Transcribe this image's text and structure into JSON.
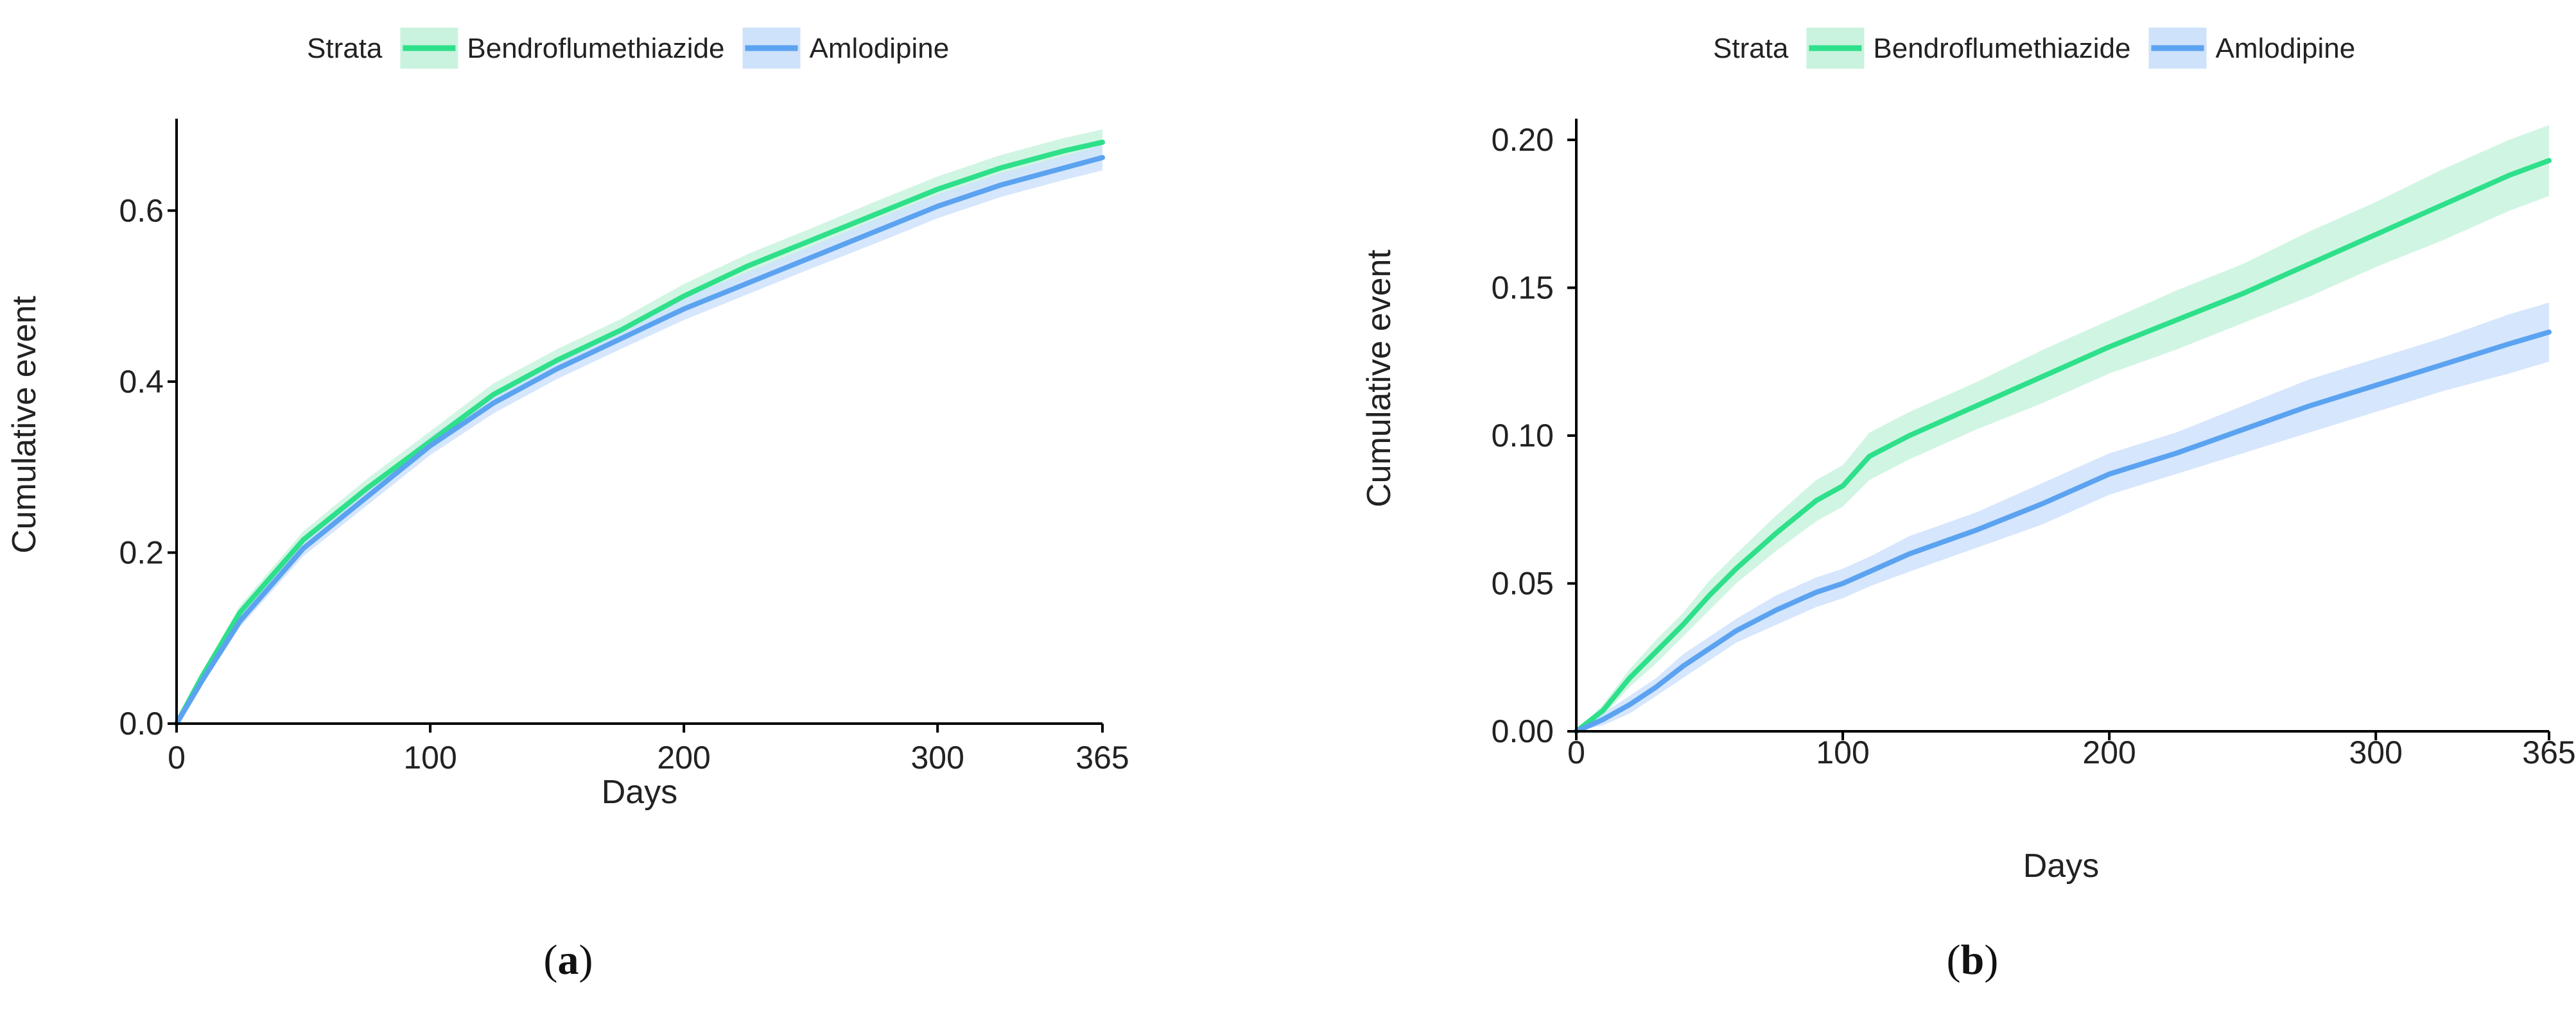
{
  "chart_data": [
    {
      "type": "line",
      "panel_label": "a",
      "title": "",
      "xlabel": "Days",
      "ylabel": "Cumulative event",
      "xlim": [
        0,
        365
      ],
      "ylim": [
        0,
        0.7
      ],
      "xticks": [
        "0",
        "100",
        "200",
        "300",
        "365"
      ],
      "xtick_values": [
        0,
        100,
        200,
        300,
        365
      ],
      "yticks": [
        "0.0",
        "0.2",
        "0.4",
        "0.6"
      ],
      "ytick_values": [
        0,
        0.2,
        0.4,
        0.6
      ],
      "grid": false,
      "legend": {
        "title": "Strata",
        "position": "top",
        "entries": [
          "Bendroflumethiazide",
          "Amlodipine"
        ]
      },
      "series": [
        {
          "name": "Bendroflumethiazide",
          "color": "#2EE08A",
          "band_color": "#C9F3DE",
          "x": [
            0,
            10,
            25,
            50,
            75,
            100,
            125,
            150,
            175,
            200,
            225,
            250,
            275,
            300,
            325,
            350,
            365
          ],
          "values": [
            0,
            0.055,
            0.13,
            0.215,
            0.275,
            0.33,
            0.385,
            0.425,
            0.46,
            0.5,
            0.535,
            0.565,
            0.595,
            0.625,
            0.65,
            0.67,
            0.68
          ],
          "ci_lower": [
            0,
            0.05,
            0.122,
            0.205,
            0.264,
            0.318,
            0.372,
            0.412,
            0.447,
            0.486,
            0.521,
            0.551,
            0.58,
            0.61,
            0.635,
            0.655,
            0.665
          ],
          "ci_upper": [
            0,
            0.06,
            0.138,
            0.225,
            0.286,
            0.342,
            0.398,
            0.438,
            0.473,
            0.514,
            0.549,
            0.579,
            0.61,
            0.64,
            0.665,
            0.685,
            0.695
          ]
        },
        {
          "name": "Amlodipine",
          "color": "#5BA3F0",
          "band_color": "#CFE2FB",
          "x": [
            0,
            10,
            25,
            50,
            75,
            100,
            125,
            150,
            175,
            200,
            225,
            250,
            275,
            300,
            325,
            350,
            365
          ],
          "values": [
            0,
            0.05,
            0.12,
            0.205,
            0.265,
            0.325,
            0.375,
            0.415,
            0.45,
            0.485,
            0.515,
            0.545,
            0.575,
            0.605,
            0.63,
            0.65,
            0.662
          ],
          "ci_lower": [
            0,
            0.045,
            0.113,
            0.196,
            0.255,
            0.314,
            0.363,
            0.403,
            0.438,
            0.472,
            0.502,
            0.532,
            0.561,
            0.591,
            0.616,
            0.636,
            0.647
          ],
          "ci_upper": [
            0,
            0.055,
            0.127,
            0.214,
            0.275,
            0.336,
            0.387,
            0.427,
            0.462,
            0.498,
            0.528,
            0.558,
            0.589,
            0.619,
            0.644,
            0.664,
            0.677
          ]
        }
      ]
    },
    {
      "type": "line",
      "panel_label": "b",
      "title": "",
      "xlabel": "Days",
      "ylabel": "Cumulative event",
      "xlim": [
        0,
        365
      ],
      "ylim": [
        0,
        0.205
      ],
      "xticks": [
        "0",
        "100",
        "200",
        "300",
        "365"
      ],
      "xtick_values": [
        0,
        100,
        200,
        300,
        365
      ],
      "yticks": [
        "0.00",
        "0.05",
        "0.10",
        "0.15",
        "0.20"
      ],
      "ytick_values": [
        0,
        0.05,
        0.1,
        0.15,
        0.2
      ],
      "grid": false,
      "legend": {
        "title": "Strata",
        "position": "top",
        "entries": [
          "Bendroflumethiazide",
          "Amlodipine"
        ]
      },
      "series": [
        {
          "name": "Bendroflumethiazide",
          "color": "#2EE08A",
          "band_color": "#C9F3DE",
          "x": [
            0,
            10,
            20,
            30,
            40,
            50,
            60,
            75,
            90,
            100,
            110,
            125,
            150,
            175,
            200,
            225,
            250,
            275,
            300,
            325,
            350,
            365
          ],
          "values": [
            0,
            0.007,
            0.018,
            0.027,
            0.036,
            0.046,
            0.055,
            0.067,
            0.078,
            0.083,
            0.093,
            0.1,
            0.11,
            0.12,
            0.13,
            0.139,
            0.148,
            0.158,
            0.168,
            0.178,
            0.188,
            0.193
          ],
          "ci_lower": [
            0,
            0.005,
            0.015,
            0.023,
            0.032,
            0.041,
            0.05,
            0.061,
            0.071,
            0.076,
            0.085,
            0.092,
            0.102,
            0.111,
            0.121,
            0.129,
            0.138,
            0.147,
            0.157,
            0.166,
            0.176,
            0.181
          ],
          "ci_upper": [
            0,
            0.009,
            0.021,
            0.031,
            0.04,
            0.051,
            0.06,
            0.073,
            0.085,
            0.09,
            0.101,
            0.108,
            0.118,
            0.129,
            0.139,
            0.149,
            0.158,
            0.169,
            0.179,
            0.19,
            0.2,
            0.205
          ]
        },
        {
          "name": "Amlodipine",
          "color": "#5BA3F0",
          "band_color": "#CFE2FB",
          "x": [
            0,
            10,
            20,
            30,
            40,
            50,
            60,
            75,
            90,
            100,
            110,
            125,
            150,
            175,
            200,
            225,
            250,
            275,
            300,
            325,
            350,
            365
          ],
          "values": [
            0,
            0.004,
            0.009,
            0.015,
            0.022,
            0.028,
            0.034,
            0.041,
            0.047,
            0.05,
            0.054,
            0.06,
            0.068,
            0.077,
            0.087,
            0.094,
            0.102,
            0.11,
            0.117,
            0.124,
            0.131,
            0.135
          ],
          "ci_lower": [
            0,
            0.002,
            0.006,
            0.012,
            0.018,
            0.024,
            0.03,
            0.036,
            0.042,
            0.045,
            0.049,
            0.054,
            0.062,
            0.07,
            0.08,
            0.087,
            0.094,
            0.101,
            0.108,
            0.115,
            0.121,
            0.125
          ],
          "ci_upper": [
            0,
            0.006,
            0.012,
            0.018,
            0.026,
            0.032,
            0.038,
            0.046,
            0.052,
            0.055,
            0.059,
            0.066,
            0.074,
            0.084,
            0.094,
            0.101,
            0.11,
            0.119,
            0.126,
            0.133,
            0.141,
            0.145
          ]
        }
      ]
    }
  ]
}
